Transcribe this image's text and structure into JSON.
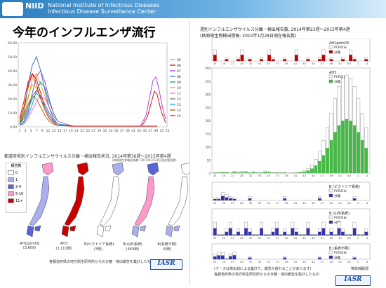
{
  "header": {
    "logo": "NIID",
    "org_line1": "National Institute of Infectious Diseases",
    "org_line2": "Infectious Disease Surveillance Center"
  },
  "page_title": "今年のインフルエンザ流行",
  "left_chart": {
    "y_ticks": [
      "60.00",
      "50.00",
      "40.00",
      "30.00",
      "20.00",
      "10.00",
      "0.00"
    ],
    "x_ticks": [
      "1",
      "3",
      "5",
      "7",
      "9",
      "11",
      "13",
      "15",
      "17",
      "19",
      "21",
      "23",
      "25",
      "27",
      "29",
      "31",
      "33",
      "35",
      "37",
      "39",
      "41",
      "43",
      "45",
      "47",
      "49",
      "51",
      "53"
    ],
    "legend": [
      "05",
      "06",
      "07",
      "08",
      "09",
      "10",
      "11",
      "12",
      "13",
      "14",
      "15"
    ],
    "legend_colors": [
      "#ff9900",
      "#cc0000",
      "#9933cc",
      "#3366cc",
      "#009999",
      "#99cc00",
      "#ff66cc",
      "#666666",
      "#00aaee",
      "#aa5500",
      "#ff0000"
    ]
  },
  "map_section": {
    "title": "都道府県別インフルエンザウイルス分離・検出報告状況, 2014年第36週〜2015年第4週",
    "subtitle": "(病原微生物検出情報: 2015年1月28日現在報告数)",
    "legend_title": "報告数",
    "legend_items": [
      "0",
      "1",
      "2-4",
      "5-10",
      "11+"
    ],
    "legend_colors": [
      "#ffffff",
      "#aab0ee",
      "#5a64d6",
      "#ff99cc",
      "#cc0000"
    ],
    "map_labels": [
      "AH1pdm09\n(3,609)",
      "AH3\n(2,111例)",
      "B(ビクトリア系統)\n(3例)",
      "B(山形系統)\n(464例)",
      "B(系統不明)\n(0例)"
    ],
    "note": "各都道府県の地方衛生研究所からの分離・検出報告を集計したもの",
    "iasr": "IASR"
  },
  "right_section": {
    "title": "週別インフルエンザウイルス分離・検出報告数, 2014年第23週〜2015年第4週",
    "subtitle": "(病原微生物検出情報: 2015年1月28日現在報告数)",
    "panels": [
      {
        "name": "AH1pdm09",
        "legend": [
          "PCRのみ",
          "分離"
        ]
      },
      {
        "name": "AH3",
        "legend": [
          "PCRのみ",
          "分離"
        ]
      },
      {
        "name": "B (ビクトリア系統)",
        "legend": [
          "PCRのみ",
          "分離"
        ]
      },
      {
        "name": "B (山形系統)",
        "legend": [
          "PCRのみ",
          "分離"
        ]
      },
      {
        "name": "B (系統不明)",
        "legend": [
          "PCRのみ",
          "分離"
        ]
      }
    ],
    "ah3_y_ticks": [
      "400",
      "350",
      "300",
      "250",
      "200",
      "150",
      "100",
      "50",
      "0"
    ],
    "x_ticks": [
      "23",
      "25",
      "27",
      "29",
      "31",
      "33",
      "35",
      "37",
      "39",
      "41",
      "43",
      "45",
      "47",
      "49",
      "51",
      "53",
      "2",
      "4"
    ],
    "footer": "(データは検出週による集計で、報告が遅れることがあります)",
    "footer2": "各都道府県の地方衛生研究所からの分離・検出報告を集計したもの",
    "iasr": "IASR",
    "week_label": "検体採取週"
  }
}
